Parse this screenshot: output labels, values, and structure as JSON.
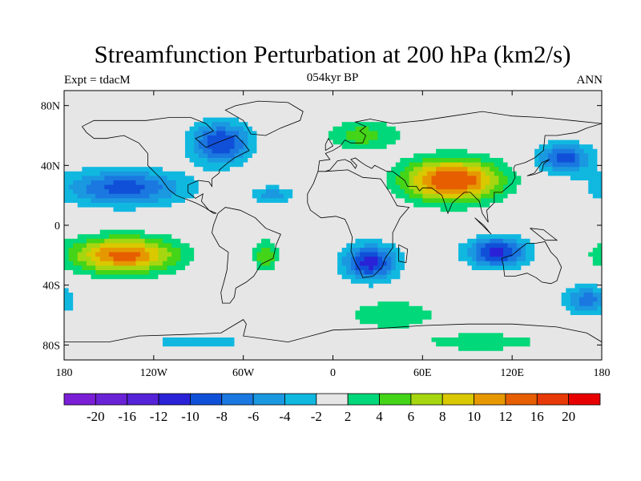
{
  "header": {
    "title": "Streamfunction Perturbation at 200 hPa (km2/s)",
    "left": "Expt = tdacM",
    "center": "054kyr BP",
    "right": "ANN"
  },
  "axes": {
    "lat_ticks": [
      "80N",
      "40N",
      "0",
      "40S",
      "80S"
    ],
    "lon_ticks": [
      "180",
      "120W",
      "60W",
      "0",
      "60E",
      "120E",
      "180"
    ]
  },
  "colorbar": {
    "colors": [
      "#7b1fd6",
      "#6a22d6",
      "#5522d8",
      "#2a22d6",
      "#1050d8",
      "#1a78e0",
      "#1a98e0",
      "#10b8e0",
      "#e6e6e6",
      "#00d87a",
      "#44d418",
      "#a6d610",
      "#dac800",
      "#e69800",
      "#e65e00",
      "#e83a08",
      "#e80000"
    ],
    "labels": [
      "-20",
      "-16",
      "-12",
      "-10",
      "-8",
      "-6",
      "-4",
      "-2",
      "2",
      "4",
      "6",
      "8",
      "10",
      "12",
      "16",
      "20"
    ]
  },
  "field": {
    "blobs": [
      {
        "lon": -140,
        "lat": 25,
        "value": -9,
        "width_lon": 40,
        "width_lat": 12
      },
      {
        "lon": -75,
        "lat": 55,
        "value": -10,
        "width_lon": 20,
        "width_lat": 14
      },
      {
        "lon": -40,
        "lat": 20,
        "value": -5,
        "width_lon": 15,
        "width_lat": 6
      },
      {
        "lon": -140,
        "lat": -20,
        "value": 13,
        "width_lon": 35,
        "width_lat": 12
      },
      {
        "lon": -45,
        "lat": -20,
        "value": 6,
        "width_lon": 8,
        "width_lat": 10
      },
      {
        "lon": 20,
        "lat": 60,
        "value": 5,
        "width_lon": 25,
        "width_lat": 10
      },
      {
        "lon": 80,
        "lat": 30,
        "value": 15,
        "width_lon": 32,
        "width_lat": 14
      },
      {
        "lon": 25,
        "lat": -25,
        "value": -11,
        "width_lon": 18,
        "width_lat": 12
      },
      {
        "lon": 110,
        "lat": -18,
        "value": -11,
        "width_lon": 20,
        "width_lat": 10
      },
      {
        "lon": 155,
        "lat": 45,
        "value": -9,
        "width_lon": 18,
        "width_lat": 10
      },
      {
        "lon": 170,
        "lat": -50,
        "value": -7,
        "width_lon": 15,
        "width_lat": 10
      },
      {
        "lon": 40,
        "lat": -60,
        "value": 4,
        "width_lon": 30,
        "width_lat": 10
      },
      {
        "lon": -90,
        "lat": -78,
        "value": -3,
        "width_lon": 40,
        "width_lat": 6
      },
      {
        "lon": 100,
        "lat": -78,
        "value": 4,
        "width_lon": 40,
        "width_lat": 6
      }
    ]
  }
}
